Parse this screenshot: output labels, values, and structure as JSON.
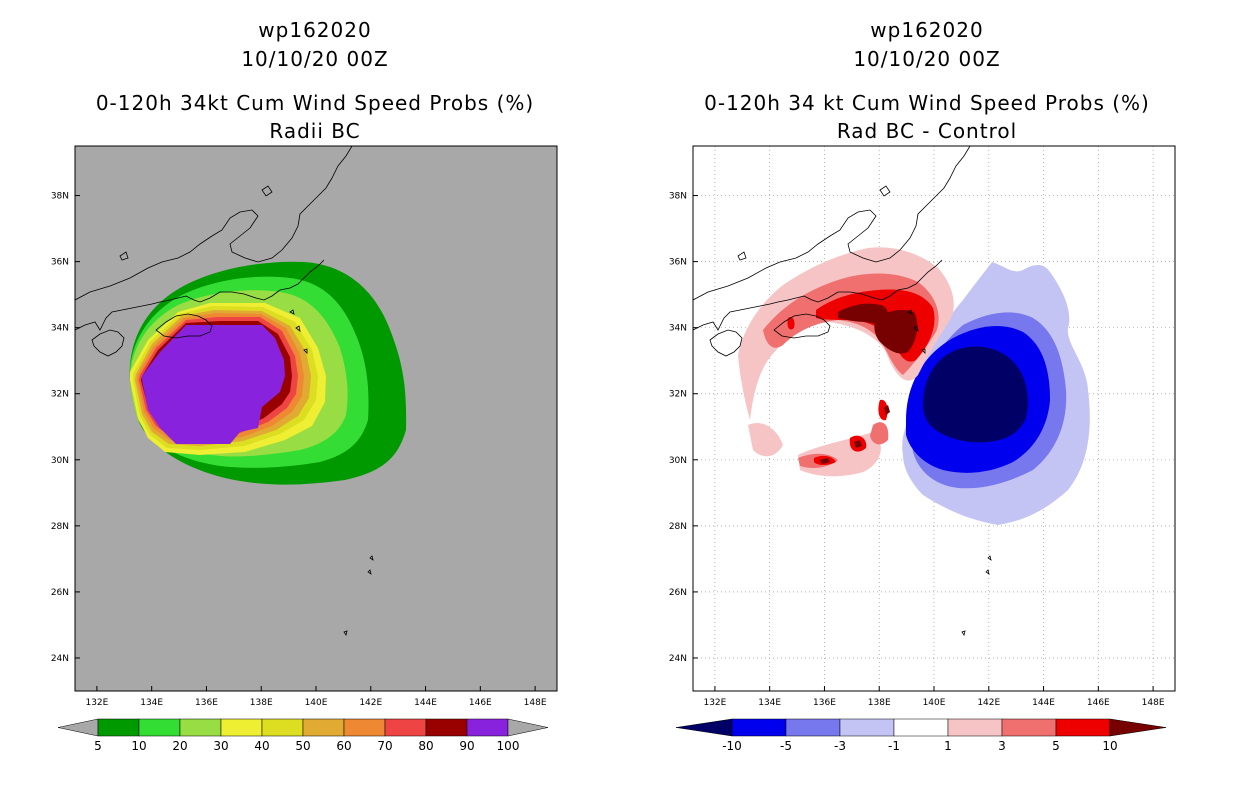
{
  "left": {
    "title1": "wp162020",
    "title2": "10/10/20 00Z",
    "title3": "0-120h 34kt Cum Wind Speed Probs (%)",
    "title4": "Radii BC"
  },
  "right": {
    "title1": "wp162020",
    "title2": "10/10/20 00Z",
    "title3": "0-120h 34 kt Cum Wind Speed Probs (%)",
    "title4": "Rad BC - Control"
  },
  "chart_data": [
    {
      "type": "heatmap",
      "title": "0-120h 34kt Cum Wind Speed Probs (%) - Radii BC",
      "storm": "wp162020",
      "init_time": "10/10/20 00Z",
      "x_ticks": [
        "132E",
        "134E",
        "136E",
        "138E",
        "140E",
        "142E",
        "144E",
        "146E",
        "148E"
      ],
      "y_ticks": [
        "24N",
        "26N",
        "28N",
        "30N",
        "32N",
        "34N",
        "36N",
        "38N"
      ],
      "xlim": [
        131.2,
        148.8
      ],
      "ylim": [
        23.0,
        39.5
      ],
      "legend_labels": [
        "5",
        "10",
        "20",
        "30",
        "40",
        "50",
        "60",
        "70",
        "80",
        "90",
        "100"
      ],
      "legend_colors": [
        "#009900",
        "#33dd33",
        "#99dd44",
        "#eeee33",
        "#dddd22",
        "#e0aa33",
        "#ee8833",
        "#ee4444",
        "#990000",
        "#8822dd"
      ],
      "background": "#a8a8a8",
      "center": [
        136.6,
        32.2
      ]
    },
    {
      "type": "heatmap",
      "title": "0-120h 34 kt Cum Wind Speed Probs (%) - Rad BC - Control",
      "storm": "wp162020",
      "init_time": "10/10/20 00Z",
      "x_ticks": [
        "132E",
        "134E",
        "136E",
        "138E",
        "140E",
        "142E",
        "144E",
        "146E",
        "148E"
      ],
      "y_ticks": [
        "24N",
        "26N",
        "28N",
        "30N",
        "32N",
        "34N",
        "36N",
        "38N"
      ],
      "xlim": [
        131.2,
        148.8
      ],
      "ylim": [
        23.0,
        39.5
      ],
      "legend_labels": [
        "-10",
        "-5",
        "-3",
        "-1",
        "1",
        "3",
        "5",
        "10"
      ],
      "legend_colors": [
        "#000066",
        "#0000ee",
        "#7777ee",
        "#c4c4f4",
        "#ffffff",
        "#f6c4c4",
        "#f07070",
        "#ee0000",
        "#770000"
      ],
      "background": "#ffffff"
    }
  ]
}
